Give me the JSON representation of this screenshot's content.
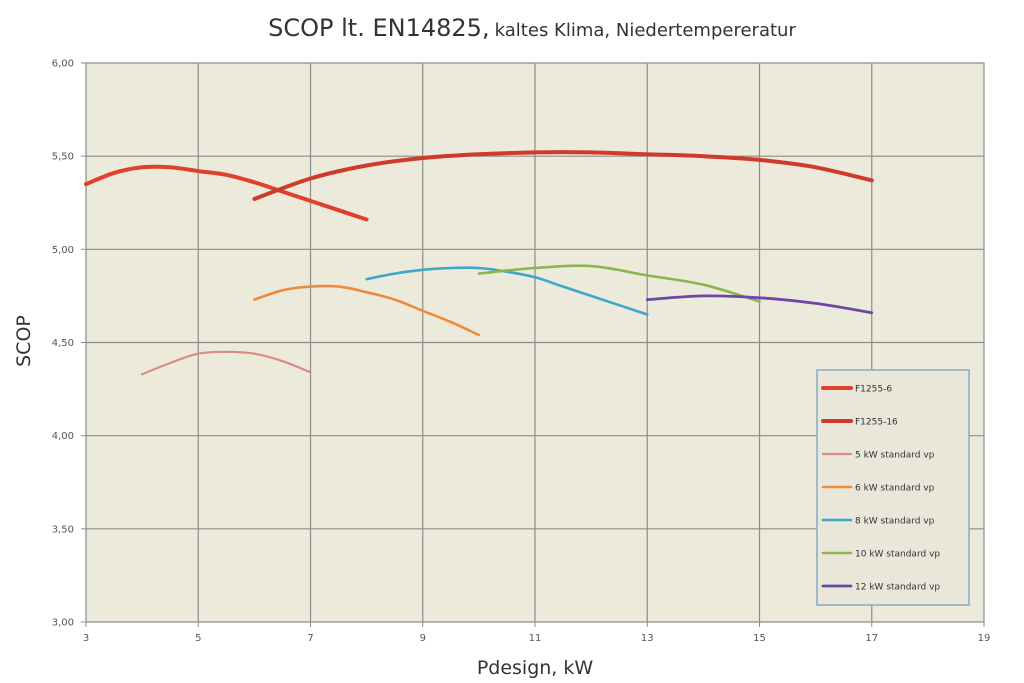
{
  "chart_data": {
    "type": "line",
    "title": "SCOP lt. EN14825,",
    "subtitle": "kaltes Klima, Niedertempereratur",
    "xlabel": "Pdesign, kW",
    "ylabel": "SCOP",
    "xlim": [
      3,
      19
    ],
    "ylim": [
      3.0,
      6.0
    ],
    "x_ticks": [
      3,
      5,
      7,
      9,
      11,
      13,
      15,
      17,
      19
    ],
    "y_ticks": [
      3.0,
      3.5,
      4.0,
      4.5,
      5.0,
      5.5,
      6.0
    ],
    "y_tick_labels": [
      "3,00",
      "3,50",
      "4,00",
      "4,50",
      "5,00",
      "5,50",
      "6,00"
    ],
    "grid": true,
    "legend_position": "bottom-right",
    "series": [
      {
        "name": "F1255-6",
        "color": "#e0412c",
        "x": [
          3,
          3.5,
          4,
          4.5,
          5,
          5.5,
          6,
          6.5,
          7,
          7.5,
          8
        ],
        "y": [
          5.35,
          5.41,
          5.44,
          5.44,
          5.42,
          5.4,
          5.36,
          5.31,
          5.26,
          5.21,
          5.16
        ]
      },
      {
        "name": "F1255-16",
        "color": "#cf3a2a",
        "x": [
          6,
          7,
          8,
          9,
          10,
          11,
          12,
          13,
          14,
          15,
          16,
          17
        ],
        "y": [
          5.27,
          5.38,
          5.45,
          5.49,
          5.51,
          5.52,
          5.52,
          5.51,
          5.5,
          5.48,
          5.44,
          5.37
        ]
      },
      {
        "name": "5 kW standard vp",
        "color": "#d98b84",
        "x": [
          4,
          4.5,
          5,
          5.5,
          6,
          6.5,
          7
        ],
        "y": [
          4.33,
          4.39,
          4.44,
          4.45,
          4.44,
          4.4,
          4.34
        ]
      },
      {
        "name": "6 kW standard vp",
        "color": "#ee8a3c",
        "x": [
          6,
          6.5,
          7,
          7.5,
          8,
          8.5,
          9,
          9.5,
          10
        ],
        "y": [
          4.73,
          4.78,
          4.8,
          4.8,
          4.77,
          4.73,
          4.67,
          4.61,
          4.54
        ]
      },
      {
        "name": "8 kW standard vp",
        "color": "#3fa6c9",
        "x": [
          8,
          8.5,
          9,
          9.5,
          10,
          10.5,
          11,
          11.5,
          12,
          12.5,
          13
        ],
        "y": [
          4.84,
          4.87,
          4.89,
          4.9,
          4.9,
          4.88,
          4.85,
          4.8,
          4.75,
          4.7,
          4.65
        ]
      },
      {
        "name": "10 kW standard vp",
        "color": "#8cb44f",
        "x": [
          10,
          11,
          12,
          13,
          14,
          15
        ],
        "y": [
          4.87,
          4.9,
          4.91,
          4.86,
          4.81,
          4.72
        ]
      },
      {
        "name": "12 kW standard vp",
        "color": "#6f46a6",
        "x": [
          13,
          14,
          15,
          16,
          17
        ],
        "y": [
          4.73,
          4.75,
          4.74,
          4.71,
          4.66
        ]
      }
    ]
  }
}
